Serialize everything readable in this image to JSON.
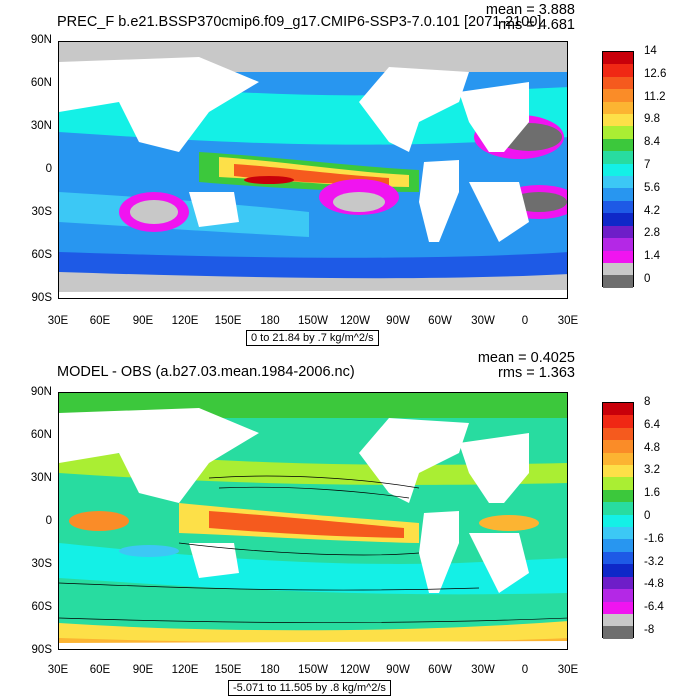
{
  "chart_data": [
    {
      "type": "heatmap",
      "title": "PREC_F b.e21.BSSP370cmip6.f09_g17.CMIP6-SSP3-7.0.101 [2071-2100]",
      "stats": {
        "mean": "mean = 3.888",
        "rms": "rms = 4.681"
      },
      "range_text": "0 to 21.84 by .7 kg/m^2/s",
      "y_ticks": [
        "90N",
        "60N",
        "30N",
        "0",
        "30S",
        "60S",
        "90S"
      ],
      "x_ticks": [
        "30E",
        "60E",
        "90E",
        "120E",
        "150E",
        "180",
        "150W",
        "120W",
        "90W",
        "60W",
        "30W",
        "0",
        "30E"
      ],
      "colorbar_labels": [
        "14",
        "12.6",
        "11.2",
        "9.8",
        "8.4",
        "7",
        "5.6",
        "4.2",
        "2.8",
        "1.4",
        "0"
      ],
      "colorbar_colors": [
        "#c8000a",
        "#f02814",
        "#f55a1e",
        "#fa8c28",
        "#fcb432",
        "#fde048",
        "#aaee33",
        "#3cc83c",
        "#28dca0",
        "#14f0e6",
        "#3cc8f5",
        "#2896f0",
        "#1e5ae6",
        "#0f28c8",
        "#6e1ec8",
        "#b428e6",
        "#f014f0",
        "#c8c8c8",
        "#6e6e6e"
      ]
    },
    {
      "type": "heatmap",
      "title": "MODEL - OBS (a.b27.03.mean.1984-2006.nc)",
      "stats": {
        "mean": "mean = 0.4025",
        "rms": "rms = 1.363"
      },
      "range_text": "-5.071 to 11.505 by .8 kg/m^2/s",
      "y_ticks": [
        "90N",
        "60N",
        "30N",
        "0",
        "30S",
        "60S",
        "90S"
      ],
      "x_ticks": [
        "30E",
        "60E",
        "90E",
        "120E",
        "150E",
        "180",
        "150W",
        "120W",
        "90W",
        "60W",
        "30W",
        "0",
        "30E"
      ],
      "colorbar_labels": [
        "8",
        "6.4",
        "4.8",
        "3.2",
        "1.6",
        "0",
        "-1.6",
        "-3.2",
        "-4.8",
        "-6.4",
        "-8"
      ],
      "colorbar_colors": [
        "#c8000a",
        "#f02814",
        "#f55a1e",
        "#fa8c28",
        "#fcb432",
        "#fde048",
        "#aaee33",
        "#3cc83c",
        "#28dca0",
        "#14f0e6",
        "#3cc8f5",
        "#2896f0",
        "#1e5ae6",
        "#0f28c8",
        "#6e1ec8",
        "#b428e6",
        "#f014f0",
        "#c8c8c8",
        "#6e6e6e"
      ]
    }
  ]
}
